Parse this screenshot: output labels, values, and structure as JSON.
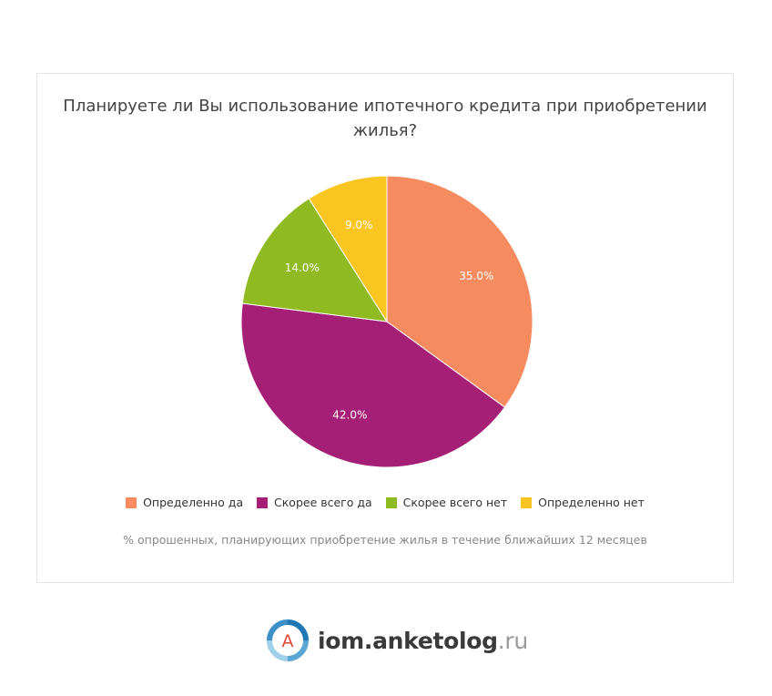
{
  "chart_data": {
    "type": "pie",
    "title": "Планируете ли Вы использование ипотечного кредита при приобретении жилья?",
    "caption": "% опрошенных, планирующих приобретение жилья в течение ближайших 12 месяцев",
    "slices": [
      {
        "label": "Определенно да",
        "value": 35.0,
        "value_label": "35.0%",
        "color": "#f68b5f"
      },
      {
        "label": "Скорее всего да",
        "value": 42.0,
        "value_label": "42.0%",
        "color": "#a61f76"
      },
      {
        "label": "Скорее всего нет",
        "value": 14.0,
        "value_label": "14.0%",
        "color": "#8fba22"
      },
      {
        "label": "Определенно нет",
        "value": 9.0,
        "value_label": "9.0%",
        "color": "#f9c521"
      }
    ],
    "legend_position": "bottom"
  },
  "branding": {
    "logo_letter": "A",
    "site_main": "iom.anketolog",
    "site_tld": ".ru"
  }
}
